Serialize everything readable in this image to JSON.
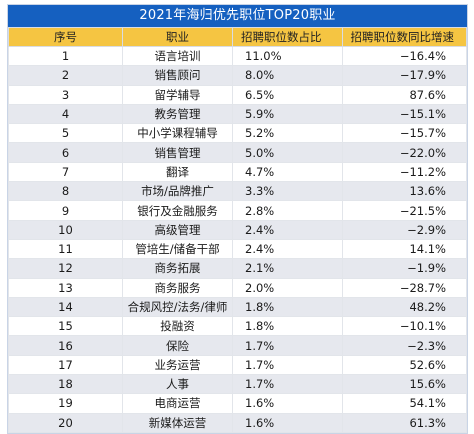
{
  "title": "2021年海归优先职位TOP20职业",
  "headers": {
    "rank": "序号",
    "job": "职业",
    "share": "招聘职位数占比",
    "growth": "招聘职位数同比增速"
  },
  "rows": [
    {
      "rank": "1",
      "job": "语言培训",
      "share": "11.0%",
      "growth": "−16.4%"
    },
    {
      "rank": "2",
      "job": "销售顾问",
      "share": "8.0%",
      "growth": "−17.9%"
    },
    {
      "rank": "3",
      "job": "留学辅导",
      "share": "6.5%",
      "growth": "87.6%"
    },
    {
      "rank": "4",
      "job": "教务管理",
      "share": "5.9%",
      "growth": "−15.1%"
    },
    {
      "rank": "5",
      "job": "中小学课程辅导",
      "share": "5.2%",
      "growth": "−15.7%"
    },
    {
      "rank": "6",
      "job": "销售管理",
      "share": "5.0%",
      "growth": "−22.0%"
    },
    {
      "rank": "7",
      "job": "翻译",
      "share": "4.7%",
      "growth": "−11.2%"
    },
    {
      "rank": "8",
      "job": "市场/品牌推广",
      "share": "3.3%",
      "growth": "13.6%"
    },
    {
      "rank": "9",
      "job": "银行及金融服务",
      "share": "2.8%",
      "growth": "−21.5%"
    },
    {
      "rank": "10",
      "job": "高级管理",
      "share": "2.4%",
      "growth": "−2.9%"
    },
    {
      "rank": "11",
      "job": "管培生/储备干部",
      "share": "2.4%",
      "growth": "14.1%"
    },
    {
      "rank": "12",
      "job": "商务拓展",
      "share": "2.1%",
      "growth": "−1.9%"
    },
    {
      "rank": "13",
      "job": "商务服务",
      "share": "2.0%",
      "growth": "−28.7%"
    },
    {
      "rank": "14",
      "job": "合规风控/法务/律师",
      "share": "1.8%",
      "growth": "48.2%"
    },
    {
      "rank": "15",
      "job": "投融资",
      "share": "1.8%",
      "growth": "−10.1%"
    },
    {
      "rank": "16",
      "job": "保险",
      "share": "1.7%",
      "growth": "−2.3%"
    },
    {
      "rank": "17",
      "job": "业务运营",
      "share": "1.7%",
      "growth": "52.6%"
    },
    {
      "rank": "18",
      "job": "人事",
      "share": "1.7%",
      "growth": "15.6%"
    },
    {
      "rank": "19",
      "job": "电商运营",
      "share": "1.6%",
      "growth": "54.1%"
    },
    {
      "rank": "20",
      "job": "新媒体运营",
      "share": "1.6%",
      "growth": "61.3%"
    }
  ],
  "colors": {
    "title_bg": "#1560c0",
    "header_bg": "#f5c542",
    "stripe_bg": "#e6e8ee"
  }
}
